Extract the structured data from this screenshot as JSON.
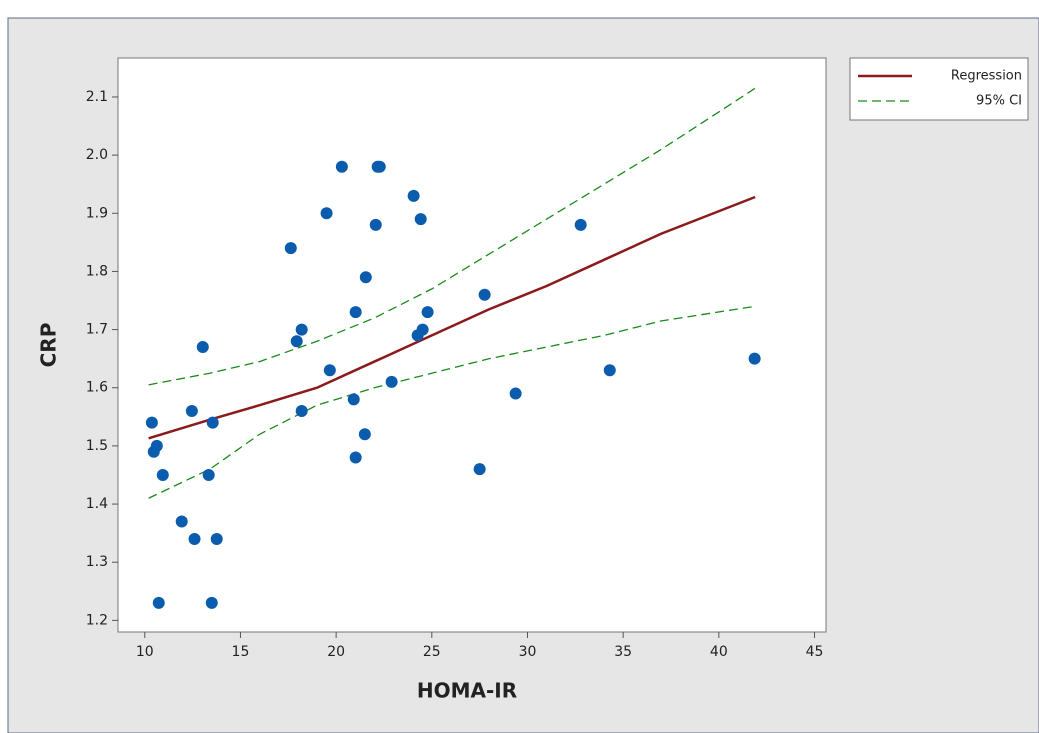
{
  "chart_data": {
    "type": "scatter",
    "x_label": "HOMA-IR",
    "y_label": "CRP",
    "color": "#0b5cad",
    "x": [
      10.37,
      10.47,
      10.63,
      10.73,
      10.94,
      11.93,
      12.46,
      12.6,
      13.03,
      13.34,
      13.5,
      13.55,
      13.76,
      17.63,
      17.94,
      18.2,
      18.2,
      19.5,
      19.67,
      20.3,
      20.92,
      21.02,
      21.02,
      21.5,
      21.55,
      22.07,
      22.17,
      22.28,
      22.9,
      24.05,
      24.26,
      24.42,
      24.52,
      24.78,
      27.5,
      27.76,
      29.38,
      32.78,
      34.3,
      41.87
    ],
    "values": [
      1.54,
      1.49,
      1.5,
      1.23,
      1.45,
      1.37,
      1.56,
      1.34,
      1.67,
      1.45,
      1.23,
      1.54,
      1.34,
      1.84,
      1.68,
      1.7,
      1.56,
      1.9,
      1.63,
      1.98,
      1.58,
      1.73,
      1.48,
      1.52,
      1.79,
      1.88,
      1.98,
      1.98,
      1.61,
      1.93,
      1.69,
      1.89,
      1.7,
      1.73,
      1.46,
      1.76,
      1.59,
      1.88,
      1.63,
      1.65
    ],
    "fit_x": [
      10.2,
      13.4,
      16,
      19,
      22,
      25,
      28,
      31,
      34,
      37,
      41.9
    ],
    "series": [
      {
        "name": "Regression",
        "color": "#8b1a1a",
        "style": "solid",
        "values": [
          1.513,
          1.545,
          1.57,
          1.6,
          1.645,
          1.69,
          1.735,
          1.775,
          1.82,
          1.865,
          1.928
        ]
      },
      {
        "name": "95% CI",
        "color": "#1a8a1a",
        "style": "dashed",
        "values": [
          1.605,
          1.625,
          1.645,
          1.68,
          1.72,
          1.77,
          1.83,
          1.89,
          1.95,
          2.01,
          2.115
        ],
        "lower": [
          1.41,
          1.46,
          1.52,
          1.57,
          1.6,
          1.625,
          1.65,
          1.67,
          1.69,
          1.715,
          1.74
        ]
      }
    ],
    "xlim": [
      8.6,
      45.6
    ],
    "ylim": [
      1.18,
      2.167
    ],
    "xticks": [
      10,
      15,
      20,
      25,
      30,
      35,
      40,
      45
    ],
    "yticks": [
      1.2,
      1.3,
      1.4,
      1.5,
      1.6,
      1.7,
      1.8,
      1.9,
      {
        "value": 2,
        "label": "2.0"
      },
      2.1
    ],
    "legend": "outside-right"
  }
}
